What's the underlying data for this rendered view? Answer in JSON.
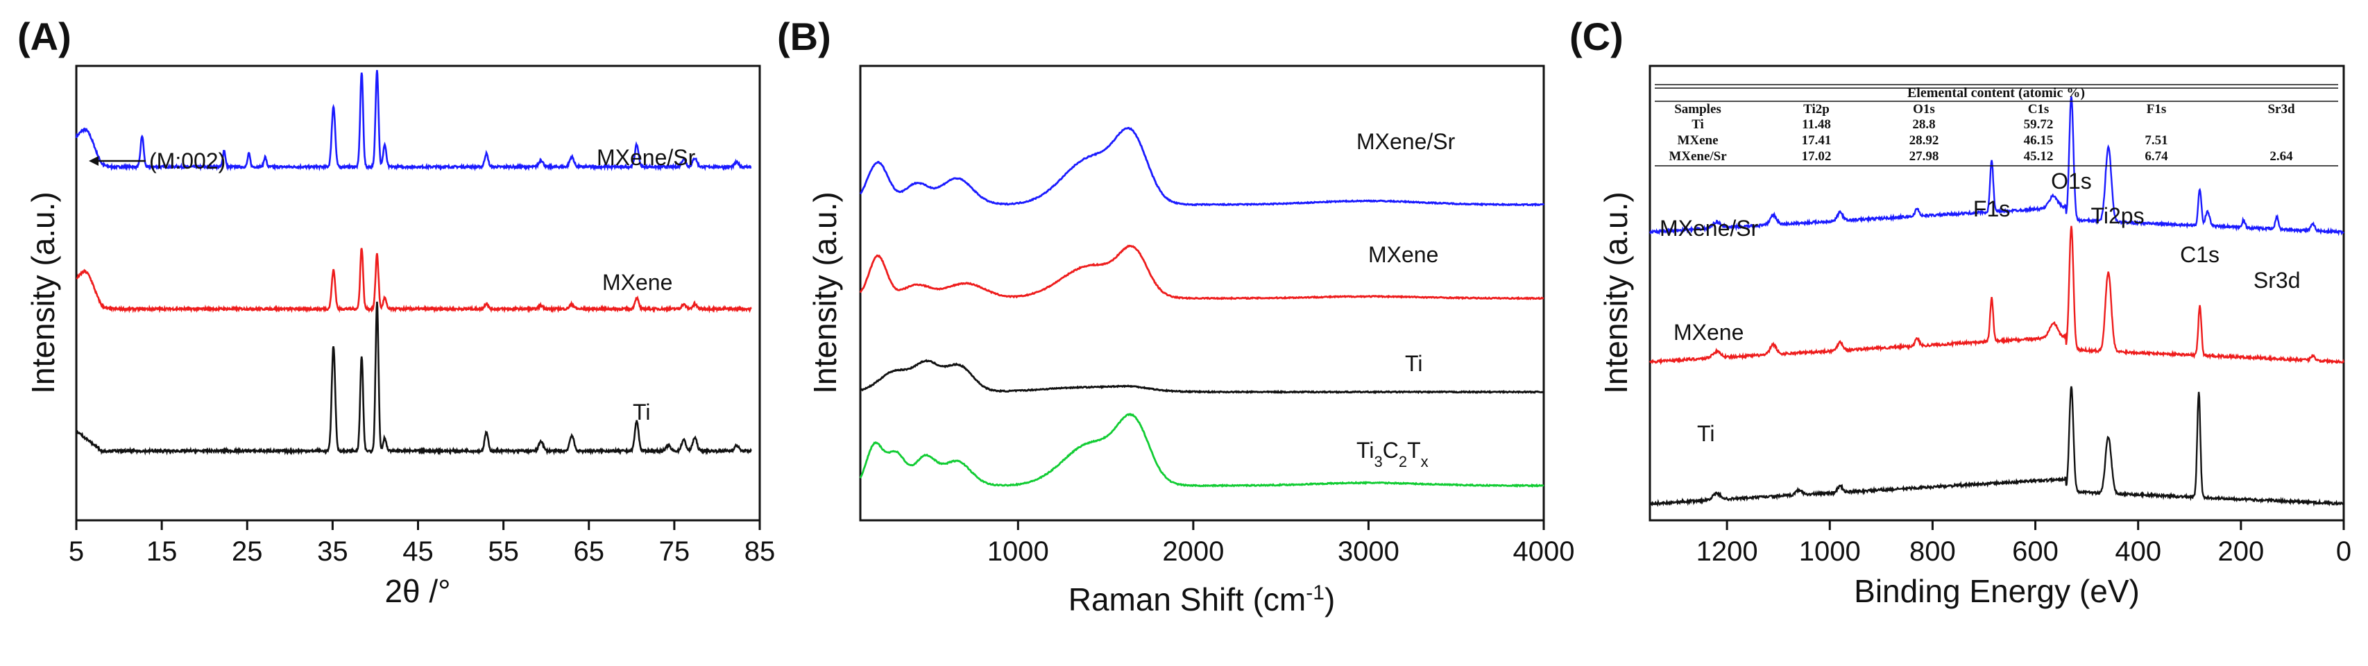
{
  "panels": {
    "a": {
      "label": "(A)"
    },
    "b": {
      "label": "(B)"
    },
    "c": {
      "label": "(C)"
    }
  },
  "colors": {
    "blue": "#1a1aff",
    "red": "#ee1c1c",
    "black": "#111111",
    "green": "#11cc33"
  },
  "chart_data": [
    {
      "type": "line",
      "title": "",
      "xlabel": "2θ /°",
      "ylabel": "Intensity (a.u.)",
      "xlim": [
        5,
        85
      ],
      "xticks": [
        "5",
        "15",
        "25",
        "35",
        "45",
        "55",
        "65",
        "75",
        "85"
      ],
      "annotation": "(M:002)",
      "series": [
        {
          "name": "MXene/Sr",
          "color": "#1a1aff",
          "offset": 2.1,
          "scale": 0.82,
          "peaks": [
            [
              6.2,
              0.22,
              0.9
            ],
            [
              12.7,
              0.28,
              0.18
            ],
            [
              22.3,
              0.15,
              0.15
            ],
            [
              25.2,
              0.12,
              0.15
            ],
            [
              27.1,
              0.09,
              0.15
            ],
            [
              35.1,
              0.55,
              0.2
            ],
            [
              38.4,
              0.85,
              0.17
            ],
            [
              40.2,
              0.88,
              0.17
            ],
            [
              41.1,
              0.2,
              0.18
            ],
            [
              53.0,
              0.12,
              0.2
            ],
            [
              59.4,
              0.06,
              0.25
            ],
            [
              63.0,
              0.09,
              0.25
            ],
            [
              70.6,
              0.2,
              0.22
            ],
            [
              76.1,
              0.07,
              0.25
            ],
            [
              77.4,
              0.08,
              0.25
            ],
            [
              82.3,
              0.04,
              0.25
            ]
          ]
        },
        {
          "name": "MXene",
          "color": "#ee1c1c",
          "offset": 1.05,
          "scale": 0.82,
          "peaks": [
            [
              6.2,
              0.22,
              0.9
            ],
            [
              35.1,
              0.35,
              0.2
            ],
            [
              38.4,
              0.55,
              0.17
            ],
            [
              40.2,
              0.5,
              0.17
            ],
            [
              41.1,
              0.1,
              0.18
            ],
            [
              53.0,
              0.05,
              0.2
            ],
            [
              59.4,
              0.03,
              0.25
            ],
            [
              63.0,
              0.04,
              0.25
            ],
            [
              70.6,
              0.1,
              0.22
            ],
            [
              76.1,
              0.04,
              0.25
            ],
            [
              77.4,
              0.04,
              0.25
            ]
          ]
        },
        {
          "name": "Ti",
          "color": "#111111",
          "offset": 0.0,
          "scale": 0.82,
          "peaks": [
            [
              35.1,
              0.95,
              0.2
            ],
            [
              38.4,
              0.85,
              0.17
            ],
            [
              40.2,
              1.35,
              0.17
            ],
            [
              41.1,
              0.12,
              0.18
            ],
            [
              53.0,
              0.17,
              0.2
            ],
            [
              59.4,
              0.09,
              0.25
            ],
            [
              63.0,
              0.14,
              0.25
            ],
            [
              70.6,
              0.27,
              0.22
            ],
            [
              74.3,
              0.05,
              0.25
            ],
            [
              76.1,
              0.1,
              0.25
            ],
            [
              77.4,
              0.12,
              0.25
            ],
            [
              82.3,
              0.05,
              0.25
            ]
          ]
        }
      ]
    },
    {
      "type": "line",
      "title": "",
      "xlabel": "Raman Shift (cm",
      "xlabel_sup": "-1",
      "xlabel_end": ")",
      "ylabel": "Intensity (a.u.)",
      "xlim": [
        100,
        4000
      ],
      "xticks": [
        "1000",
        "2000",
        "3000",
        "4000"
      ],
      "series": [
        {
          "name": "MXene/Sr",
          "color": "#1a1aff",
          "offset": 3.0,
          "peaks": [
            [
              200,
              0.45,
              60
            ],
            [
              420,
              0.22,
              70
            ],
            [
              650,
              0.28,
              90
            ],
            [
              1420,
              0.5,
              160
            ],
            [
              1650,
              0.62,
              90
            ],
            [
              3000,
              0.04,
              300
            ]
          ]
        },
        {
          "name": "MXene",
          "color": "#ee1c1c",
          "offset": 2.0,
          "peaks": [
            [
              200,
              0.45,
              50
            ],
            [
              420,
              0.14,
              80
            ],
            [
              700,
              0.16,
              110
            ],
            [
              1420,
              0.35,
              170
            ],
            [
              1660,
              0.42,
              80
            ],
            [
              3000,
              0.02,
              300
            ]
          ]
        },
        {
          "name": "Ti",
          "color": "#111111",
          "offset": 1.0,
          "peaks": [
            [
              300,
              0.22,
              90
            ],
            [
              480,
              0.28,
              70
            ],
            [
              660,
              0.28,
              80
            ],
            [
              1400,
              0.05,
              250
            ],
            [
              1650,
              0.03,
              100
            ]
          ]
        },
        {
          "name": "Ti3C2Tx",
          "label_main": "Ti",
          "label_sub1": "3",
          "label_mid": "C",
          "label_sub2": "2",
          "label_end": "T",
          "label_sub3": "x",
          "color": "#11cc33",
          "offset": 0.0,
          "peaks": [
            [
              180,
              0.42,
              45
            ],
            [
              300,
              0.35,
              55
            ],
            [
              470,
              0.3,
              60
            ],
            [
              650,
              0.26,
              80
            ],
            [
              1420,
              0.45,
              160
            ],
            [
              1660,
              0.6,
              90
            ],
            [
              3000,
              0.03,
              300
            ]
          ]
        }
      ]
    },
    {
      "type": "line",
      "title": "",
      "xlabel": "Binding Energy (eV)",
      "ylabel": "Intensity (a.u.)",
      "xlim": [
        1350,
        0
      ],
      "xticks": [
        "1200",
        "1000",
        "800",
        "600",
        "400",
        "200",
        "0"
      ],
      "peak_labels": [
        {
          "text": "F1s",
          "x": 685
        },
        {
          "text": "O1s",
          "x": 530
        },
        {
          "text": "Ti2ps",
          "x": 440
        },
        {
          "text": "C1s",
          "x": 280
        },
        {
          "text": "Sr3d",
          "x": 130
        }
      ],
      "series": [
        {
          "name": "MXene/Sr",
          "color": "#1a1aff",
          "offset": 2.2,
          "peaks": [
            [
              1220,
              0.05,
              8
            ],
            [
              1110,
              0.08,
              6
            ],
            [
              980,
              0.07,
              5
            ],
            [
              830,
              0.06,
              4
            ],
            [
              685,
              0.42,
              3
            ],
            [
              565,
              0.1,
              8
            ],
            [
              530,
              1.0,
              4
            ],
            [
              460,
              0.38,
              5
            ],
            [
              455,
              0.3,
              5
            ],
            [
              280,
              0.3,
              3
            ],
            [
              265,
              0.12,
              4
            ],
            [
              195,
              0.06,
              3
            ],
            [
              130,
              0.1,
              3
            ],
            [
              60,
              0.05,
              4
            ]
          ]
        },
        {
          "name": "MXene",
          "color": "#ee1c1c",
          "offset": 1.15,
          "peaks": [
            [
              1220,
              0.05,
              8
            ],
            [
              1110,
              0.08,
              6
            ],
            [
              980,
              0.07,
              5
            ],
            [
              830,
              0.06,
              4
            ],
            [
              685,
              0.35,
              3
            ],
            [
              565,
              0.12,
              8
            ],
            [
              530,
              1.0,
              4
            ],
            [
              460,
              0.42,
              5
            ],
            [
              455,
              0.3,
              5
            ],
            [
              280,
              0.4,
              3
            ],
            [
              60,
              0.04,
              4
            ]
          ]
        },
        {
          "name": "Ti",
          "color": "#111111",
          "offset": 0.0,
          "peaks": [
            [
              1220,
              0.05,
              8
            ],
            [
              1060,
              0.04,
              6
            ],
            [
              980,
              0.05,
              5
            ],
            [
              530,
              0.85,
              4
            ],
            [
              460,
              0.3,
              5
            ],
            [
              455,
              0.22,
              5
            ],
            [
              282,
              0.85,
              3
            ]
          ]
        }
      ]
    }
  ],
  "table": {
    "title": "Elemental content (atomic %)",
    "headers": [
      "Samples",
      "Ti2p",
      "O1s",
      "C1s",
      "F1s",
      "Sr3d"
    ],
    "rows": [
      [
        "Ti",
        "11.48",
        "28.8",
        "59.72",
        "",
        ""
      ],
      [
        "MXene",
        "17.41",
        "28.92",
        "46.15",
        "7.51",
        ""
      ],
      [
        "MXene/Sr",
        "17.02",
        "27.98",
        "45.12",
        "6.74",
        "2.64"
      ]
    ]
  }
}
